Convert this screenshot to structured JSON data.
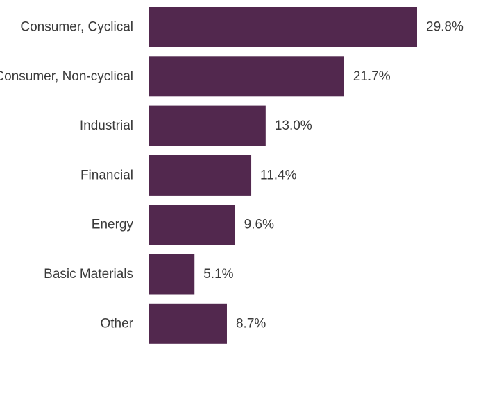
{
  "chart_data": {
    "type": "bar",
    "orientation": "horizontal",
    "categories": [
      "Consumer, Cyclical",
      "Consumer, Non-cyclical",
      "Industrial",
      "Financial",
      "Energy",
      "Basic Materials",
      "Other"
    ],
    "values": [
      29.8,
      21.7,
      13.0,
      11.4,
      9.6,
      5.1,
      8.7
    ],
    "value_labels": [
      "29.8%",
      "21.7%",
      "13.0%",
      "11.4%",
      "9.6%",
      "5.1%",
      "8.7%"
    ],
    "xlim": [
      0,
      29.8
    ],
    "grid": false,
    "legend": "none",
    "bar_color": "#52284e"
  }
}
